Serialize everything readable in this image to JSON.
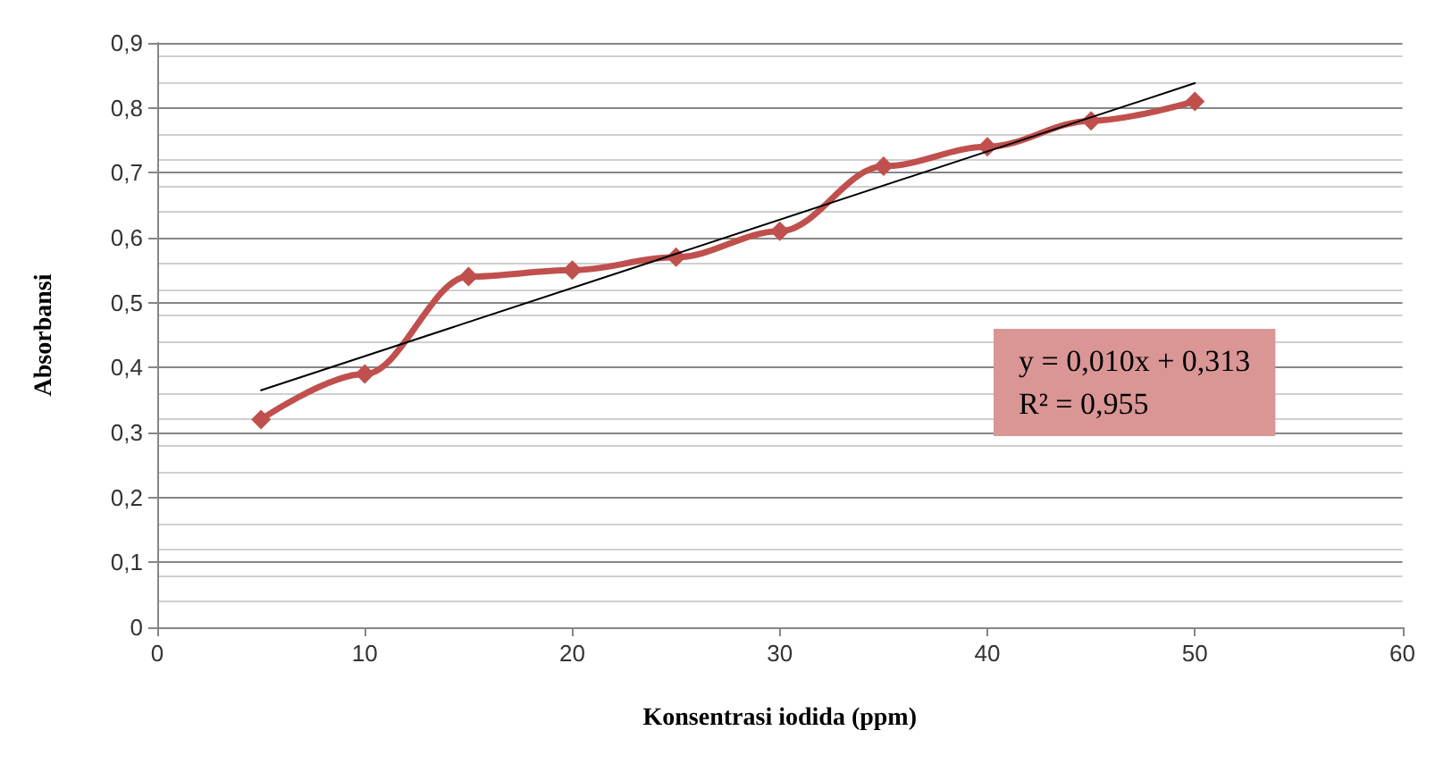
{
  "chart_data": {
    "type": "line",
    "xlabel": "Konsentrasi iodida (ppm)",
    "ylabel": "Absorbansi",
    "x": [
      5,
      10,
      15,
      20,
      25,
      30,
      35,
      40,
      45,
      50
    ],
    "series": [
      {
        "color": "#c0504d",
        "marker": "diamond",
        "values": [
          0.32,
          0.39,
          0.54,
          0.55,
          0.57,
          0.61,
          0.71,
          0.74,
          0.78,
          0.81
        ]
      },
      {
        "color": "#000000",
        "marker": "none",
        "x": [
          5,
          50
        ],
        "values": [
          0.365,
          0.838
        ]
      }
    ],
    "xlim": [
      0,
      60
    ],
    "xticks": [
      0,
      10,
      20,
      30,
      40,
      50,
      60
    ],
    "ylim": [
      0,
      0.9
    ],
    "yticks": [
      {
        "value": 0,
        "label": "0"
      },
      {
        "value": 0.1,
        "label": "0,1"
      },
      {
        "value": 0.2,
        "label": "0,2"
      },
      {
        "value": 0.3,
        "label": "0,3"
      },
      {
        "value": 0.4,
        "label": "0,4"
      },
      {
        "value": 0.5,
        "label": "0,5"
      },
      {
        "value": 0.6,
        "label": "0,6"
      },
      {
        "value": 0.7,
        "label": "0,7"
      },
      {
        "value": 0.8,
        "label": "0,8"
      },
      {
        "value": 0.9,
        "label": "0,9"
      }
    ],
    "grid": "y",
    "annotations": [
      "y = 0,010x + 0,313",
      "R² = 0,955"
    ]
  }
}
